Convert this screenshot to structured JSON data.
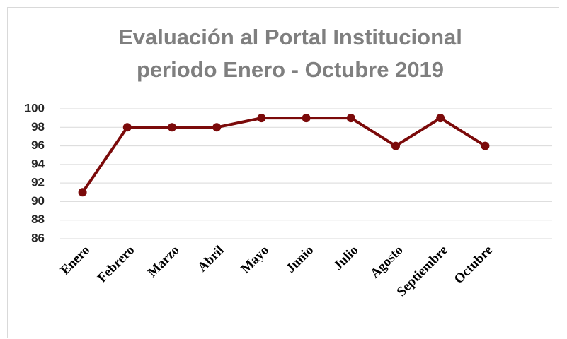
{
  "chart_data": {
    "type": "line",
    "title": [
      "Evaluación al Portal Institucional",
      "periodo Enero - Octubre 2019"
    ],
    "categories": [
      "Enero",
      "Febrero",
      "Marzo",
      "Abril",
      "Mayo",
      "Junio",
      "Julio",
      "Agosto",
      "Septiembre",
      "Octubre"
    ],
    "values": [
      91,
      98,
      98,
      98,
      99,
      99,
      99,
      96,
      99,
      96
    ],
    "color": "#7b0a0a",
    "ylim": [
      86,
      100
    ],
    "yticks": [
      86,
      88,
      90,
      92,
      94,
      96,
      98,
      100
    ],
    "grid": true
  }
}
